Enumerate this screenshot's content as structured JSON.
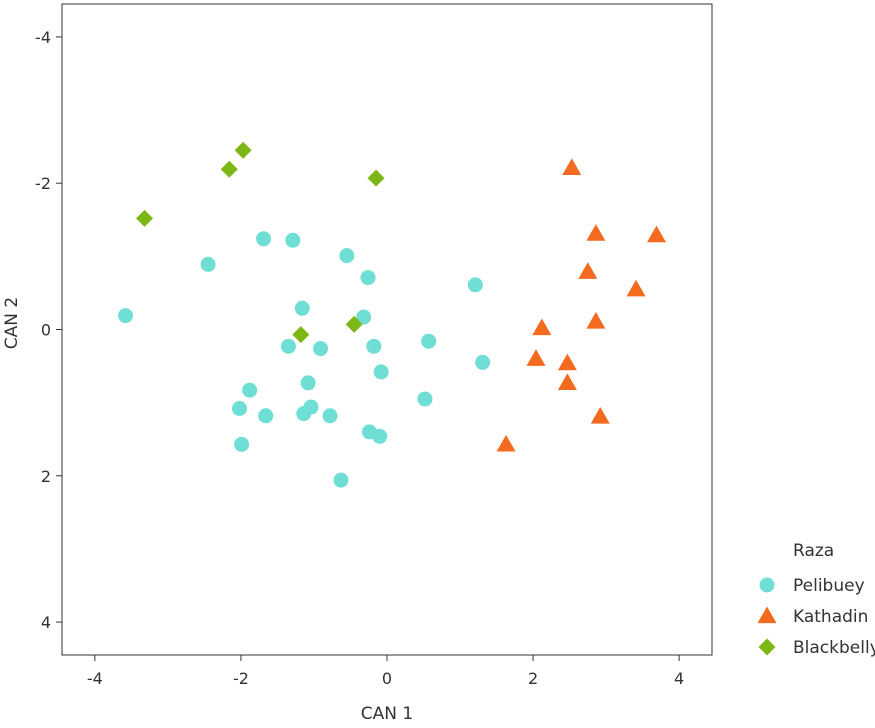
{
  "chart_data": {
    "type": "scatter",
    "title": "",
    "xlabel": "CAN 1",
    "ylabel": "CAN 2",
    "xlim": [
      -4.45,
      4.45
    ],
    "ylim": [
      4.45,
      -4.45
    ],
    "y_reversed": true,
    "x_ticks": [
      -4,
      -2,
      0,
      2,
      4
    ],
    "y_ticks": [
      -4,
      -2,
      0,
      2,
      4
    ],
    "x_tick_labels": [
      "-4",
      "-2",
      "0",
      "2",
      "4"
    ],
    "y_tick_labels": [
      "-4",
      "-2",
      "0",
      "2",
      "4"
    ],
    "grid": false,
    "legend": {
      "title": "Raza",
      "position": "right-bottom"
    },
    "series": [
      {
        "name": "Pelibuey",
        "marker": "circle",
        "color": "#6fded4",
        "points": [
          [
            -3.58,
            -0.19
          ],
          [
            -2.45,
            -0.89
          ],
          [
            -1.69,
            -1.24
          ],
          [
            -1.29,
            -1.22
          ],
          [
            -0.55,
            -1.01
          ],
          [
            -0.26,
            -0.71
          ],
          [
            -1.16,
            -0.29
          ],
          [
            -0.32,
            -0.17
          ],
          [
            1.21,
            -0.61
          ],
          [
            -1.35,
            0.23
          ],
          [
            -0.91,
            0.26
          ],
          [
            -0.18,
            0.23
          ],
          [
            0.57,
            0.16
          ],
          [
            1.31,
            0.45
          ],
          [
            -1.08,
            0.73
          ],
          [
            -1.88,
            0.83
          ],
          [
            -0.08,
            0.58
          ],
          [
            -2.02,
            1.08
          ],
          [
            -1.66,
            1.18
          ],
          [
            -1.14,
            1.15
          ],
          [
            -1.04,
            1.06
          ],
          [
            -0.78,
            1.18
          ],
          [
            0.52,
            0.95
          ],
          [
            -0.24,
            1.4
          ],
          [
            -0.1,
            1.46
          ],
          [
            -1.99,
            1.57
          ],
          [
            -0.63,
            2.06
          ]
        ]
      },
      {
        "name": "Kathadin",
        "marker": "triangle",
        "color": "#f46a1f",
        "points": [
          [
            2.53,
            -2.21
          ],
          [
            2.86,
            -1.31
          ],
          [
            3.69,
            -1.29
          ],
          [
            2.75,
            -0.79
          ],
          [
            3.41,
            -0.55
          ],
          [
            2.86,
            -0.11
          ],
          [
            2.12,
            -0.02
          ],
          [
            2.04,
            0.4
          ],
          [
            2.47,
            0.46
          ],
          [
            2.47,
            0.73
          ],
          [
            2.92,
            1.19
          ],
          [
            1.63,
            1.57
          ]
        ]
      },
      {
        "name": "Blackbelly",
        "marker": "diamond",
        "color": "#7db715",
        "points": [
          [
            -1.97,
            -2.45
          ],
          [
            -2.16,
            -2.19
          ],
          [
            -0.15,
            -2.07
          ],
          [
            -3.32,
            -1.52
          ],
          [
            -1.18,
            0.07
          ],
          [
            -0.45,
            -0.07
          ]
        ]
      }
    ]
  }
}
